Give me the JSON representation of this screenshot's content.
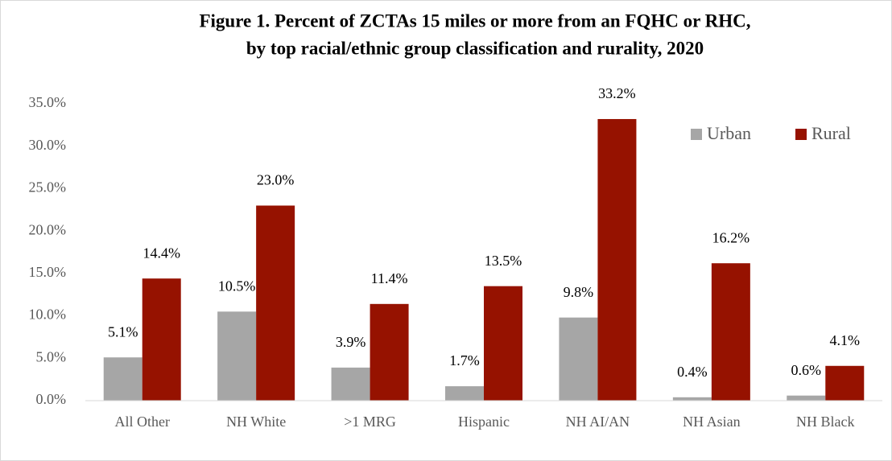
{
  "chart_data": {
    "type": "bar",
    "title": [
      "Figure 1. Percent of ZCTAs 15 miles or more from an FQHC or RHC,",
      "by top racial/ethnic group classification and rurality, 2020"
    ],
    "categories": [
      "All Other",
      "NH White",
      ">1 MRG",
      "Hispanic",
      "NH AI/AN",
      "NH Asian",
      "NH Black"
    ],
    "series": [
      {
        "name": "Urban",
        "color": "#a6a6a6",
        "values": [
          5.1,
          10.5,
          3.9,
          1.7,
          9.8,
          0.4,
          0.6
        ],
        "value_labels": [
          "5.1%",
          "10.5%",
          "3.9%",
          "1.7%",
          "9.8%",
          "0.4%",
          "0.6%"
        ]
      },
      {
        "name": "Rural",
        "color": "#961200",
        "values": [
          14.4,
          23.0,
          11.4,
          13.5,
          33.2,
          16.2,
          4.1
        ],
        "value_labels": [
          "14.4%",
          "23.0%",
          "11.4%",
          "13.5%",
          "33.2%",
          "16.2%",
          "4.1%"
        ]
      }
    ],
    "ylim": [
      0,
      35
    ],
    "yticks": [
      {
        "value": 0,
        "label": "0.0%"
      },
      {
        "value": 5,
        "label": "5.0%"
      },
      {
        "value": 10,
        "label": "10.0%"
      },
      {
        "value": 15,
        "label": "15.0%"
      },
      {
        "value": 20,
        "label": "20.0%"
      },
      {
        "value": 25,
        "label": "25.0%"
      },
      {
        "value": 30,
        "label": "30.0%"
      },
      {
        "value": 35,
        "label": "35.0%"
      }
    ],
    "grid": false,
    "legend": "top-right"
  }
}
